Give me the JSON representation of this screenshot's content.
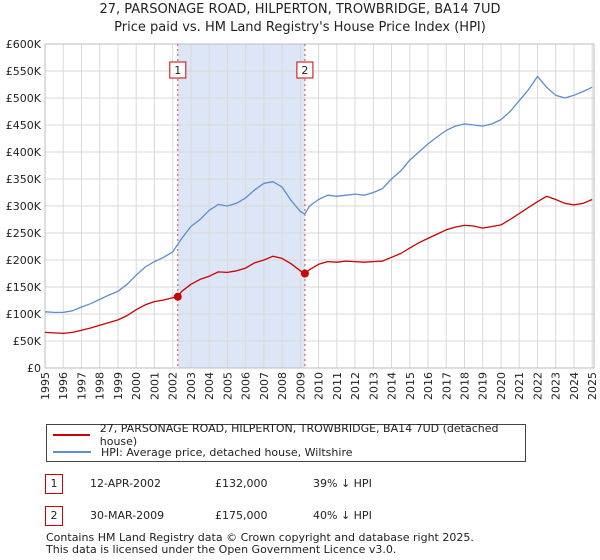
{
  "header": {
    "title_line1": "27, PARSONAGE ROAD, HILPERTON, TROWBRIDGE, BA14 7UD",
    "title_line2": "Price paid vs. HM Land Registry's House Price Index (HPI)"
  },
  "colors": {
    "price_paid": "#cc0000",
    "hpi": "#5b8fd0",
    "shade": "#dde6f6",
    "grid": "#d9d9d9",
    "marker_line": "#dd4444"
  },
  "chart_data": {
    "type": "line",
    "title": "Price paid vs. HM Land Registry's House Price Index (HPI)",
    "xlabel": "",
    "ylabel": "",
    "xlim": [
      1995.0,
      2025.1
    ],
    "ylim": [
      0,
      600000
    ],
    "y_ticks": [
      0,
      50000,
      100000,
      150000,
      200000,
      250000,
      300000,
      350000,
      400000,
      450000,
      500000,
      550000,
      600000
    ],
    "y_tick_labels": [
      "£0",
      "£50K",
      "£100K",
      "£150K",
      "£200K",
      "£250K",
      "£300K",
      "£350K",
      "£400K",
      "£450K",
      "£500K",
      "£550K",
      "£600K"
    ],
    "x_ticks": [
      1995,
      1996,
      1997,
      1998,
      1999,
      2000,
      2001,
      2002,
      2003,
      2004,
      2005,
      2006,
      2007,
      2008,
      2009,
      2010,
      2011,
      2012,
      2013,
      2014,
      2015,
      2016,
      2017,
      2018,
      2019,
      2020,
      2021,
      2022,
      2023,
      2024,
      2025
    ],
    "x_tick_labels": [
      "1995",
      "1996",
      "1997",
      "1998",
      "1999",
      "2000",
      "2001",
      "2002",
      "2003",
      "2004",
      "2005",
      "2006",
      "2007",
      "2008",
      "2009",
      "2010",
      "2011",
      "2012",
      "2013",
      "2014",
      "2015",
      "2016",
      "2017",
      "2018",
      "2019",
      "2020",
      "2021",
      "2022",
      "2023",
      "2024",
      "2025"
    ],
    "grid": true,
    "shaded_period": [
      2002.28,
      2009.25
    ],
    "series": [
      {
        "name": "27, PARSONAGE ROAD, HILPERTON, TROWBRIDGE, BA14 7UD (detached house)",
        "color": "#cc0000",
        "x": [
          1995.0,
          1995.5,
          1996.0,
          1996.5,
          1997.0,
          1997.5,
          1998.0,
          1998.5,
          1999.0,
          1999.5,
          2000.0,
          2000.5,
          2001.0,
          2001.5,
          2002.0,
          2002.28,
          2002.5,
          2003.0,
          2003.5,
          2004.0,
          2004.5,
          2005.0,
          2005.5,
          2006.0,
          2006.5,
          2007.0,
          2007.5,
          2008.0,
          2008.5,
          2009.0,
          2009.25,
          2009.5,
          2010.0,
          2010.5,
          2011.0,
          2011.5,
          2012.0,
          2012.5,
          2013.0,
          2013.5,
          2014.0,
          2014.5,
          2015.0,
          2015.5,
          2016.0,
          2016.5,
          2017.0,
          2017.5,
          2018.0,
          2018.5,
          2019.0,
          2019.5,
          2020.0,
          2020.5,
          2021.0,
          2021.5,
          2022.0,
          2022.5,
          2023.0,
          2023.5,
          2024.0,
          2024.5,
          2025.0
        ],
        "values": [
          66000,
          65000,
          64000,
          66000,
          70000,
          74000,
          79000,
          84000,
          89000,
          97000,
          108000,
          117000,
          123000,
          126000,
          130000,
          132000,
          142000,
          155000,
          164000,
          170000,
          178000,
          177000,
          180000,
          185000,
          195000,
          200000,
          207000,
          203000,
          193000,
          180000,
          175000,
          182000,
          192000,
          197000,
          196000,
          198000,
          197000,
          196000,
          197000,
          198000,
          205000,
          212000,
          222000,
          232000,
          240000,
          248000,
          256000,
          261000,
          264000,
          263000,
          259000,
          262000,
          265000,
          275000,
          286000,
          297000,
          308000,
          318000,
          312000,
          305000,
          302000,
          305000,
          312000
        ]
      },
      {
        "name": "HPI: Average price, detached house, Wiltshire",
        "color": "#5b8fd0",
        "x": [
          1995.0,
          1995.5,
          1996.0,
          1996.5,
          1997.0,
          1997.5,
          1998.0,
          1998.5,
          1999.0,
          1999.5,
          2000.0,
          2000.5,
          2001.0,
          2001.5,
          2002.0,
          2002.5,
          2003.0,
          2003.5,
          2004.0,
          2004.5,
          2005.0,
          2005.5,
          2006.0,
          2006.5,
          2007.0,
          2007.5,
          2008.0,
          2008.5,
          2009.0,
          2009.25,
          2009.5,
          2010.0,
          2010.5,
          2011.0,
          2011.5,
          2012.0,
          2012.5,
          2013.0,
          2013.5,
          2014.0,
          2014.5,
          2015.0,
          2015.5,
          2016.0,
          2016.5,
          2017.0,
          2017.5,
          2018.0,
          2018.5,
          2019.0,
          2019.5,
          2020.0,
          2020.5,
          2021.0,
          2021.5,
          2022.0,
          2022.5,
          2023.0,
          2023.5,
          2024.0,
          2024.5,
          2025.0
        ],
        "values": [
          104000,
          103000,
          103000,
          106000,
          113000,
          119000,
          127000,
          135000,
          142000,
          155000,
          172000,
          187000,
          197000,
          205000,
          215000,
          240000,
          262000,
          275000,
          292000,
          303000,
          300000,
          305000,
          315000,
          330000,
          342000,
          345000,
          335000,
          310000,
          290000,
          285000,
          300000,
          312000,
          320000,
          318000,
          320000,
          322000,
          320000,
          325000,
          332000,
          350000,
          365000,
          385000,
          400000,
          415000,
          428000,
          440000,
          448000,
          452000,
          450000,
          448000,
          452000,
          460000,
          475000,
          495000,
          515000,
          540000,
          520000,
          505000,
          500000,
          505000,
          512000,
          520000
        ]
      }
    ],
    "markers": [
      {
        "label": "1",
        "x": 2002.28,
        "y": 132000
      },
      {
        "label": "2",
        "x": 2009.25,
        "y": 175000
      }
    ]
  },
  "legend": {
    "entries": [
      {
        "label": "27, PARSONAGE ROAD, HILPERTON, TROWBRIDGE, BA14 7UD (detached house)"
      },
      {
        "label": "HPI: Average price, detached house, Wiltshire"
      }
    ]
  },
  "transactions": [
    {
      "num": "1",
      "date": "12-APR-2002",
      "price": "£132,000",
      "hpi": "39% ↓ HPI"
    },
    {
      "num": "2",
      "date": "30-MAR-2009",
      "price": "£175,000",
      "hpi": "40% ↓ HPI"
    }
  ],
  "footer": {
    "line1": "Contains HM Land Registry data © Crown copyright and database right 2025.",
    "line2": "This data is licensed under the Open Government Licence v3.0."
  }
}
